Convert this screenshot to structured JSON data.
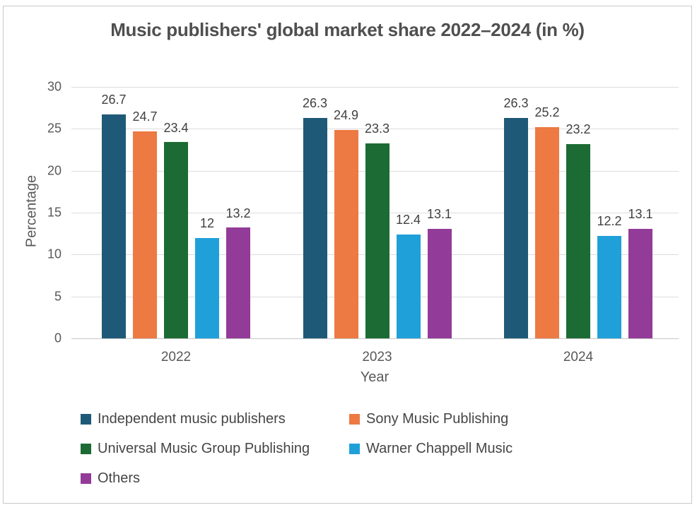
{
  "chart_data": {
    "type": "bar",
    "title": "Music publishers' global market share 2022–2024 (in %)",
    "xlabel": "Year",
    "ylabel": "Percentage",
    "categories": [
      "2022",
      "2023",
      "2024"
    ],
    "series": [
      {
        "name": "Independent music publishers",
        "color": "#1E5A78",
        "values": [
          26.7,
          26.3,
          26.3
        ]
      },
      {
        "name": "Sony Music Publishing",
        "color": "#ED7943",
        "values": [
          24.7,
          24.9,
          25.2
        ]
      },
      {
        "name": "Universal Music Group Publishing",
        "color": "#1C6B34",
        "values": [
          23.4,
          23.3,
          23.2
        ]
      },
      {
        "name": "Warner Chappell Music",
        "color": "#20A0D9",
        "values": [
          12,
          12.4,
          12.2
        ]
      },
      {
        "name": "Others",
        "color": "#933B99",
        "values": [
          13.2,
          13.1,
          13.1
        ]
      }
    ],
    "y_ticks": [
      0,
      5,
      10,
      15,
      20,
      25,
      30
    ],
    "ylim": [
      0,
      30
    ],
    "grid": true,
    "value_labels": true,
    "legend_position": "bottom",
    "colors": {
      "gridline": "#dcdcdc",
      "axis_line": "#c7c7c7",
      "axis_text": "#595959",
      "value_text": "#404040",
      "title_text": "#4f4f4f",
      "card_border": "#c9c9c9",
      "background": "#ffffff"
    }
  }
}
